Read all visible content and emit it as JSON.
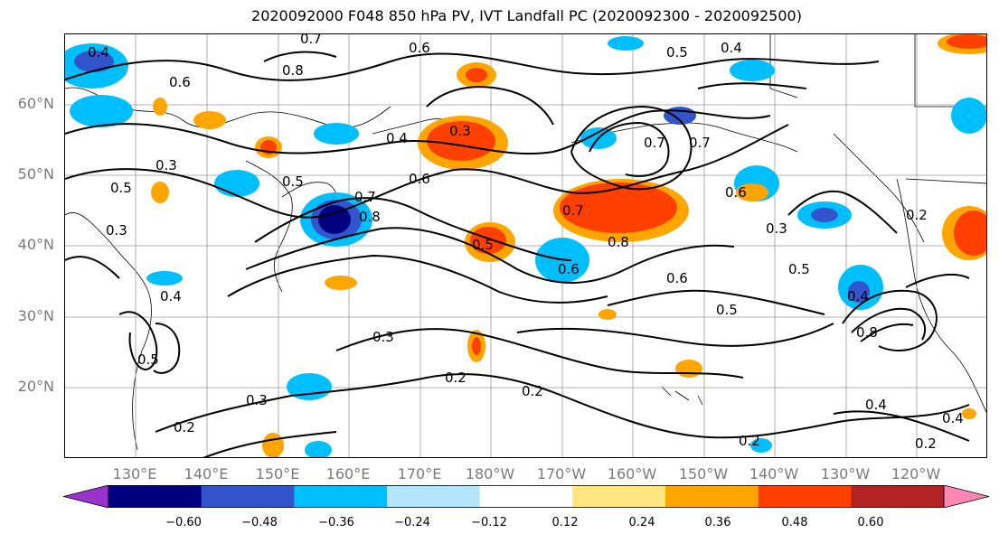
{
  "title": "2020092000 F048 850 hPa PV, IVT Landfall PC (2020092300 - 2020092500)",
  "lat_labels": [
    "60°N",
    "50°N",
    "40°N",
    "30°N",
    "20°N"
  ],
  "lon_labels": [
    "130°E",
    "140°E",
    "150°E",
    "160°E",
    "170°E",
    "180°W",
    "170°W",
    "160°W",
    "150°W",
    "140°W",
    "130°W",
    "120°W"
  ],
  "colorbar": {
    "ticks": [
      "−0.60",
      "−0.48",
      "−0.36",
      "−0.24",
      "−0.12",
      "0.12",
      "0.24",
      "0.36",
      "0.48",
      "0.60"
    ],
    "colors": [
      "#9933cc",
      "#000080",
      "#3355cc",
      "#00bfff",
      "#b3e5fc",
      "#ffffff",
      "#ffe680",
      "#ffa500",
      "#ff4000",
      "#b22222",
      "#ff85b3"
    ]
  },
  "contour_labels": [
    "0.4",
    "0.6",
    "0.8",
    "0.7",
    "0.6",
    "0.5",
    "0.4",
    "0.7",
    "0.7",
    "0.3",
    "0.5",
    "0.6",
    "0.7",
    "0.8",
    "0.7",
    "0.8",
    "0.5",
    "0.6",
    "0.6",
    "0.5",
    "0.3",
    "0.5",
    "0.4",
    "0.6",
    "0.8",
    "0.3",
    "0.2",
    "0.2",
    "0.2",
    "0.3",
    "0.2",
    "0.4",
    "0.2",
    "0.4",
    "0.3",
    "0.2",
    "0.5",
    "0.4"
  ],
  "anomaly_labels": [
    "0.3",
    "0.5",
    "0.4"
  ]
}
